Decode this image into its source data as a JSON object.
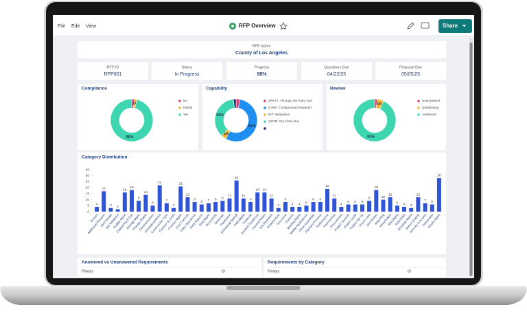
{
  "toolbar": {
    "menu": [
      "File",
      "Edit",
      "View"
    ],
    "title": "RFP Overview",
    "share": "Share"
  },
  "header": {
    "label": "RFP Name",
    "value": "County of Los Angeles"
  },
  "info_cards": [
    {
      "label": "RFP ID",
      "value": "RFP001"
    },
    {
      "label": "Status",
      "value": "In Progress"
    },
    {
      "label": "Progress",
      "value": "98%"
    },
    {
      "label": "Questions Due",
      "value": "04/22/25"
    },
    {
      "label": "Proposal Due",
      "value": "05/05/25"
    }
  ],
  "chart_data": [
    {
      "type": "pie",
      "title": "Compliance",
      "categories": [
        "No",
        "Partial",
        "Yes"
      ],
      "values": [
        2,
        2,
        96
      ],
      "value_labels": [
        null,
        "2%",
        "96%"
      ],
      "colors": [
        "#e0407a",
        "#f2b632",
        "#3dd6b0"
      ]
    },
    {
      "type": "pie",
      "title": "Capability",
      "categories": [
        "3PRTY: Through 3rd Party Tool",
        "CONF: Configuration Required",
        "INT: Integration",
        "OOTB: Out of the Box",
        null
      ],
      "values": [
        3,
        55,
        4,
        36,
        2
      ],
      "value_labels": [
        null,
        "55%",
        "4%",
        "36%",
        null
      ],
      "colors": [
        "#e0407a",
        "#1e8ef0",
        "#f2b632",
        "#3dd6b0",
        "#1a2a6c"
      ]
    },
    {
      "type": "pie",
      "title": "Review",
      "categories": [
        "Unanswered",
        "Questioning",
        "Answered"
      ],
      "values": [
        2,
        5,
        93
      ],
      "value_labels": [
        null,
        "5%",
        "93%"
      ],
      "colors": [
        "#e0407a",
        "#f2b632",
        "#3dd6b0"
      ]
    },
    {
      "type": "bar",
      "title": "Category Distribution",
      "categories": [
        "Access",
        "Additional Request",
        "Bid Change",
        "Bid Validation",
        "Budget Mgmt",
        "Capital Plg & Cos",
        "Change Mgmt",
        "Change Orders",
        "Communication",
        "Compliance/Docs",
        "Construction Cont",
        "Contract & Costs",
        "Contract Mgmt",
        "Cost Controls",
        "Daily Operations",
        "Daily Reports",
        "Data Mgmt",
        "Documents",
        "Drawings",
        "Equipment",
        "Estimating/Takeoff",
        "Field Mgmt",
        "Financial",
        "General Conditions",
        "General Notes",
        "Info Requests",
        "Infrastructure",
        "Insurance",
        "Invoices",
        "Meeting Mgmt",
        "Mobile Applications",
        "Other Submittals",
        "Payment Process",
        "Performance",
        "Permits/Insp",
        "Procurement",
        "Project Controls",
        "Project Cycle",
        "Project Set Up",
        "Punch Lists",
        "Site Photos",
        "Reporting",
        "RFIs/Orders",
        "Risk Mgmt",
        "Submittals",
        "Schedule Mgmt",
        "Search Engine",
        "Security & Access",
        "Timesheets",
        "Vendor Mgmt"
      ],
      "values": [
        4,
        17,
        3,
        2,
        16,
        18,
        9,
        14,
        5,
        22,
        7,
        3,
        21,
        12,
        8,
        6,
        7,
        8,
        9,
        11,
        26,
        11,
        8,
        16,
        16,
        11,
        3,
        8,
        4,
        4,
        5,
        8,
        8,
        19,
        11,
        4,
        6,
        6,
        6,
        9,
        18,
        10,
        12,
        5,
        4,
        3,
        12,
        7,
        6,
        28
      ],
      "color": "#2f54d6",
      "ylim": [
        0,
        35
      ],
      "yticks": [
        0,
        5,
        10,
        15,
        20,
        25,
        30,
        35
      ]
    }
  ],
  "tables": [
    {
      "title": "Answered vs Unanswered Requirements",
      "columns": [
        "Primary",
        "ID"
      ]
    },
    {
      "title": "Requirements by Category",
      "columns": [
        "Primary",
        "ID"
      ]
    }
  ]
}
